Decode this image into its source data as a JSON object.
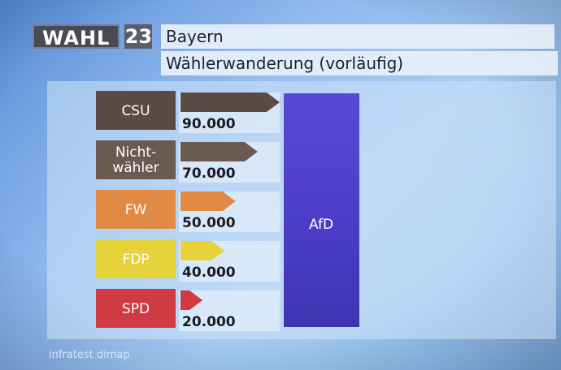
{
  "header": {
    "logo_text": "WAHL",
    "logo_year": "23",
    "title": "Bayern",
    "subtitle": "Wählerwanderung (vorläufig)"
  },
  "source": "infratest dimap",
  "colors": {
    "CSU": "#5b4b45",
    "Nicht-wähler": "#6a5a52",
    "FW": "#e08a46",
    "FDP": "#e6d33a",
    "SPD": "#d03a42",
    "AfD": "#4d3fc7"
  },
  "chart_data": {
    "type": "bar",
    "categories": [
      "CSU",
      "Nicht-\nwähler",
      "FW",
      "FDP",
      "SPD"
    ],
    "values": [
      90000,
      70000,
      50000,
      40000,
      20000
    ],
    "value_labels": [
      "90.000",
      "70.000",
      "50.000",
      "40.000",
      "20.000"
    ],
    "target": "AfD",
    "xlim": [
      0,
      90000
    ],
    "title": "Wählerwanderung (vorläufig)"
  }
}
